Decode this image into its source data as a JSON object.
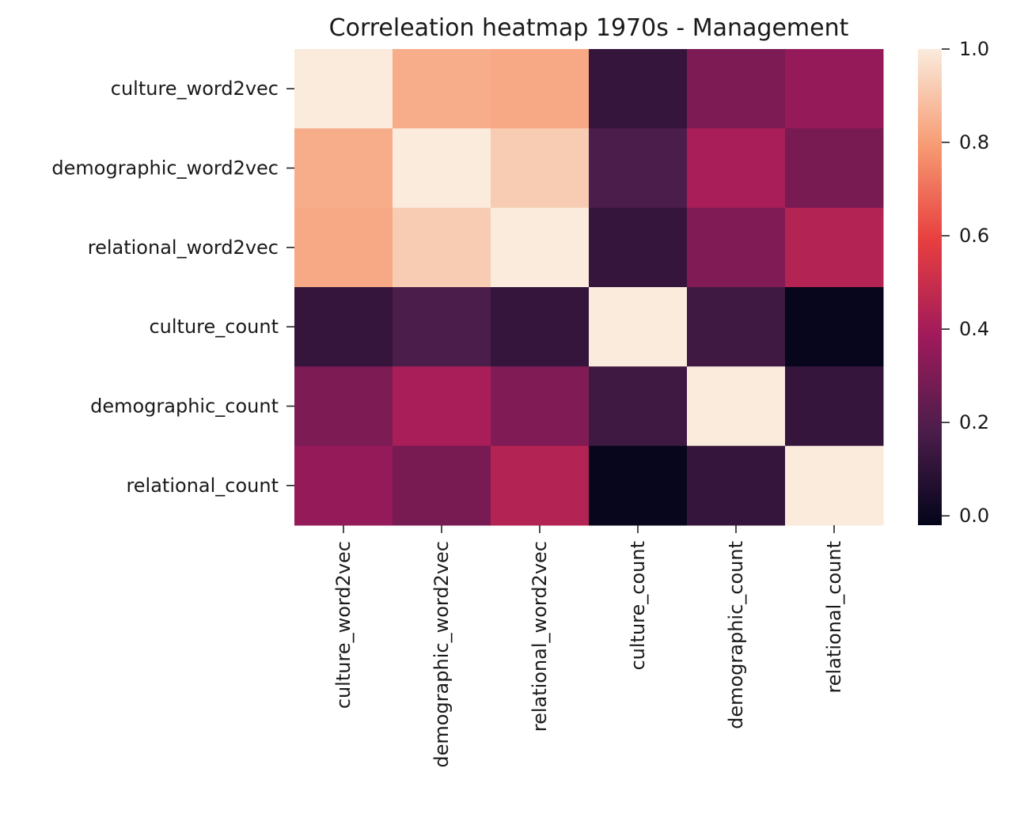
{
  "chart_data": {
    "type": "heatmap",
    "title": "Correleation heatmap 1970s - Management",
    "rows": [
      "culture_word2vec",
      "demographic_word2vec",
      "relational_word2vec",
      "culture_count",
      "demographic_count",
      "relational_count"
    ],
    "columns": [
      "culture_word2vec",
      "demographic_word2vec",
      "relational_word2vec",
      "culture_count",
      "demographic_count",
      "relational_count"
    ],
    "values": [
      [
        1.0,
        0.84,
        0.83,
        0.12,
        0.3,
        0.36
      ],
      [
        0.84,
        1.0,
        0.92,
        0.18,
        0.41,
        0.29
      ],
      [
        0.83,
        0.92,
        1.0,
        0.12,
        0.31,
        0.44
      ],
      [
        0.12,
        0.18,
        0.12,
        1.0,
        0.15,
        -0.01
      ],
      [
        0.3,
        0.41,
        0.31,
        0.15,
        1.0,
        0.12
      ],
      [
        0.36,
        0.29,
        0.44,
        -0.01,
        0.12,
        1.0
      ]
    ],
    "colorbar": {
      "min": -0.02,
      "max": 1.0,
      "ticks": [
        "0.0",
        "0.2",
        "0.4",
        "0.6",
        "0.8",
        "1.0"
      ],
      "tick_values": [
        0.0,
        0.2,
        0.4,
        0.6,
        0.8,
        1.0
      ],
      "colormap": "rocket",
      "colormap_stops": [
        "#03051a",
        "#4c1d4b",
        "#a11a5b",
        "#e83f3f",
        "#f69c73",
        "#faebdd"
      ]
    }
  }
}
